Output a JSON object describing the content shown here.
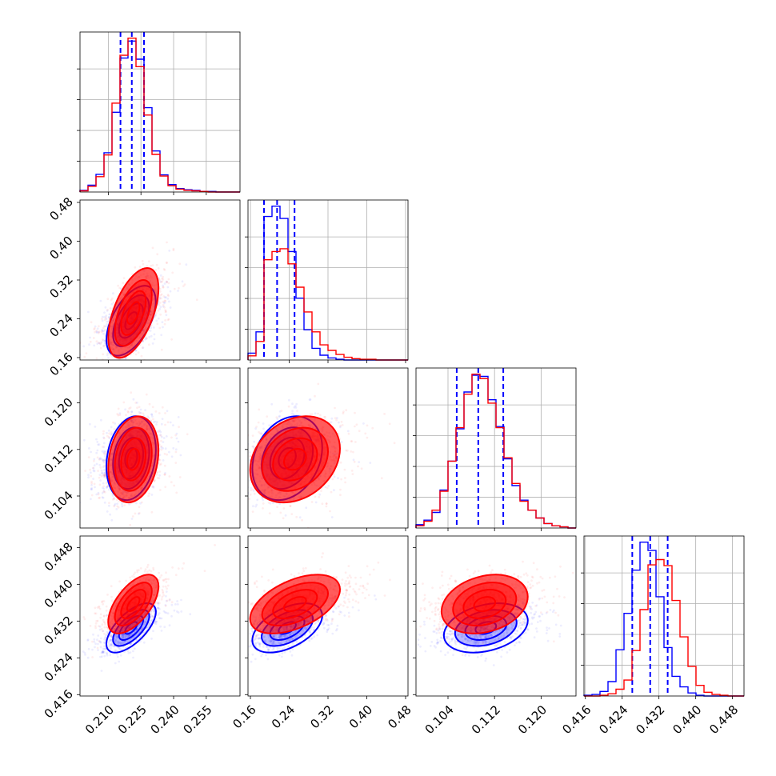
{
  "chart_data": {
    "type": "corner",
    "description": "",
    "params": [
      {
        "range": [
          0.197,
          0.2705
        ],
        "ticks": [
          0.21,
          0.225,
          0.24,
          0.255
        ],
        "tick_labels": [
          "0.210",
          "0.225",
          "0.240",
          "0.255"
        ]
      },
      {
        "range": [
          0.155,
          0.485
        ],
        "ticks": [
          0.16,
          0.24,
          0.32,
          0.4,
          0.48
        ],
        "tick_labels": [
          "0.16",
          "0.24",
          "0.32",
          "0.40",
          "0.48"
        ]
      },
      {
        "range": [
          0.0985,
          0.126
        ],
        "ticks": [
          0.104,
          0.112,
          0.12
        ],
        "tick_labels": [
          "0.104",
          "0.112",
          "0.120"
        ]
      },
      {
        "range": [
          0.4157,
          0.4505
        ],
        "ticks": [
          0.416,
          0.424,
          0.432,
          0.44,
          0.448
        ],
        "tick_labels": [
          "0.416",
          "0.424",
          "0.432",
          "0.440",
          "0.448"
        ]
      }
    ],
    "series": [
      {
        "color": "#0000ff",
        "means": [
          0.2205,
          0.236,
          0.1105,
          0.4305
        ],
        "sigmas": [
          0.0055,
          0.035,
          0.0035,
          0.0026
        ],
        "correlations": [
          [
            0,
            1,
            0.55
          ],
          [
            0,
            2,
            0.2
          ],
          [
            0,
            3,
            0.65
          ],
          [
            1,
            2,
            0.25
          ],
          [
            1,
            3,
            0.5
          ],
          [
            2,
            3,
            0.3
          ]
        ],
        "hist": [
          {
            "edges": [
              0.197,
              0.2705
            ],
            "counts": [
              0.3,
              1.2,
              3.1,
              6.9,
              14.0,
              23.5,
              26.5,
              23.3,
              14.8,
              7.2,
              3.0,
              1.3,
              0.6,
              0.4,
              0.3,
              0.1,
              0.1,
              0.0,
              0.0,
              0.0
            ]
          },
          {
            "edges": [
              0.155,
              0.485
            ],
            "counts": [
              1.0,
              4.1,
              20.9,
              22.4,
              20.6,
              15.8,
              9.0,
              4.4,
              1.7,
              0.7,
              0.3,
              0.1,
              0.0,
              0.0,
              0.0,
              0.0,
              0.0,
              0.0,
              0.0,
              0.0
            ]
          },
          {
            "edges": [
              0.0985,
              0.126
            ],
            "counts": [
              0.3,
              0.7,
              1.4,
              3.4,
              6.0,
              8.9,
              12.2,
              13.7,
              13.6,
              11.5,
              9.1,
              6.2,
              3.8,
              2.5,
              1.6,
              0.9,
              0.4,
              0.2,
              0.1,
              0.0
            ]
          },
          {
            "edges": [
              0.4157,
              0.4505
            ],
            "counts": [
              0.1,
              0.2,
              0.6,
              1.9,
              6.1,
              10.9,
              16.6,
              20.3,
              19.2,
              13.1,
              6.4,
              2.6,
              1.2,
              0.4,
              0.1,
              0.0,
              0.0,
              0.0,
              0.0,
              0.0
            ]
          }
        ],
        "quantiles": [
          [
            0.2156,
            0.2208,
            0.2264
          ],
          [
            0.188,
            0.215,
            0.251
          ],
          [
            0.1055,
            0.1092,
            0.1135
          ],
          [
            0.4262,
            0.4301,
            0.4339
          ]
        ]
      },
      {
        "color": "#ff0000",
        "means": [
          0.2215,
          0.252,
          0.1103,
          0.4357
        ],
        "sigmas": [
          0.0056,
          0.045,
          0.0036,
          0.0031
        ],
        "correlations": [
          [
            0,
            1,
            0.55
          ],
          [
            0,
            2,
            0.2
          ],
          [
            0,
            3,
            0.6
          ],
          [
            1,
            2,
            0.25
          ],
          [
            1,
            3,
            0.5
          ],
          [
            2,
            3,
            0.25
          ]
        ],
        "hist": [
          {
            "edges": [
              0.197,
              0.2705
            ],
            "counts": [
              0.2,
              1.0,
              2.7,
              6.5,
              15.6,
              24.0,
              27.0,
              22.0,
              13.5,
              6.6,
              2.8,
              1.1,
              0.5,
              0.3,
              0.2,
              0.1,
              0.0,
              0.0,
              0.0,
              0.0
            ]
          },
          {
            "edges": [
              0.155,
              0.485
            ],
            "counts": [
              0.6,
              2.7,
              14.6,
              15.8,
              16.2,
              14.0,
              10.6,
              7.0,
              4.1,
              2.2,
              1.4,
              0.8,
              0.4,
              0.2,
              0.1,
              0.1,
              0.0,
              0.0,
              0.0,
              0.0
            ]
          },
          {
            "edges": [
              0.0985,
              0.126
            ],
            "counts": [
              0.2,
              0.6,
              1.6,
              3.3,
              6.0,
              9.0,
              12.0,
              13.8,
              13.4,
              11.2,
              9.0,
              6.3,
              4.0,
              2.4,
              1.6,
              0.9,
              0.4,
              0.2,
              0.1,
              0.0
            ]
          },
          {
            "edges": [
              0.4157,
              0.4505
            ],
            "counts": [
              0.0,
              0.0,
              0.1,
              0.3,
              0.9,
              2.1,
              6.0,
              11.4,
              17.3,
              18.0,
              17.2,
              12.6,
              7.8,
              3.9,
              1.4,
              0.5,
              0.2,
              0.1,
              0.0,
              0.0
            ]
          }
        ]
      }
    ],
    "grid": true,
    "contour_levels": [
      0.12,
      0.4,
      0.68,
      0.88
    ],
    "quantile_line_style": "dashed"
  }
}
